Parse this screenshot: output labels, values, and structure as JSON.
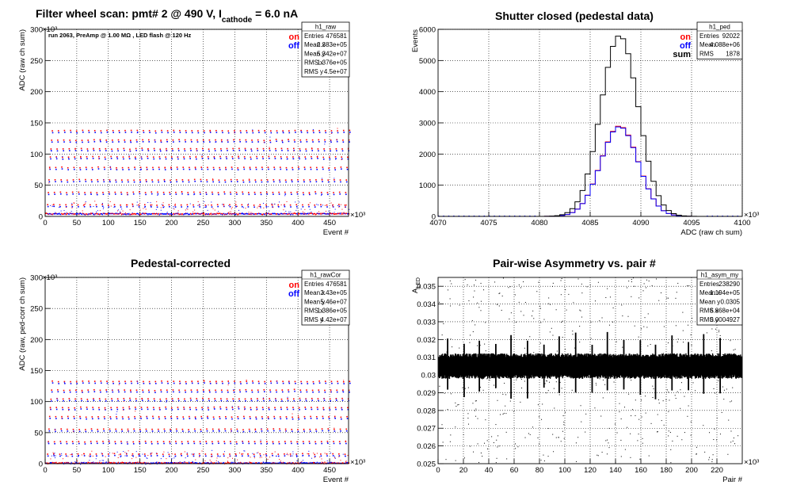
{
  "colors": {
    "on": "#ff0000",
    "off": "#0000ff",
    "sum": "#000000",
    "frame": "#000000",
    "grid": "#000000"
  },
  "chart_data": [
    {
      "type": "scatter",
      "title": "Filter wheel scan: pmt#   2 @   490 V, I",
      "title_sub": "cathode",
      "title_suffix": " = 6.0 nA",
      "xlabel": "Event #",
      "ylabel": "ADC (raw ch sum)",
      "x_exponent": "×10³",
      "y_exponent": "×10³",
      "annotation": "run 2063, PreAmp @ 1.00 MΩ , LED flash @  120 Hz",
      "legend": [
        "on",
        "off"
      ],
      "xlim": [
        0,
        480
      ],
      "ylim": [
        0,
        300
      ],
      "xticks": [
        0,
        50,
        100,
        150,
        200,
        250,
        300,
        350,
        400,
        450
      ],
      "yticks": [
        0,
        50,
        100,
        150,
        200,
        250,
        300
      ],
      "grid": true,
      "levels": [
        5,
        18,
        38,
        58,
        78,
        95,
        108,
        122,
        137
      ],
      "stats": {
        "name": "h1_raw",
        "rows": [
          [
            "Entries",
            "476581"
          ],
          [
            "Mean x",
            "2.383e+05"
          ],
          [
            "Mean y",
            "5.342e+07"
          ],
          [
            "RMS x",
            "1.376e+05"
          ],
          [
            "RMS y",
            "4.5e+07"
          ]
        ]
      }
    },
    {
      "type": "line",
      "title": "Shutter closed (pedestal data)",
      "xlabel": "ADC (raw ch sum)",
      "ylabel": "Events",
      "x_exponent": "×10³",
      "legend": [
        "on",
        "off",
        "sum"
      ],
      "xlim": [
        4070,
        4100
      ],
      "ylim": [
        0,
        6000
      ],
      "xticks": [
        4070,
        4075,
        4080,
        4085,
        4090,
        4095,
        4100
      ],
      "yticks": [
        0,
        1000,
        2000,
        3000,
        4000,
        5000,
        6000
      ],
      "grid": true,
      "series": [
        {
          "name": "on",
          "mean": 4087.9,
          "sigma": 1.85,
          "peak": 2900
        },
        {
          "name": "off",
          "mean": 4087.9,
          "sigma": 1.85,
          "peak": 2880
        },
        {
          "name": "sum",
          "mean": 4087.9,
          "sigma": 1.85,
          "peak": 5800
        }
      ],
      "stats": {
        "name": "h1_ped",
        "rows": [
          [
            "Entries",
            "92022"
          ],
          [
            "Mean",
            "4.088e+06"
          ],
          [
            "RMS",
            "1878"
          ]
        ]
      }
    },
    {
      "type": "scatter",
      "title": "Pedestal-corrected",
      "xlabel": "Event #",
      "ylabel": "ADC (raw, ped-corr ch sum)",
      "x_exponent": "×10³",
      "y_exponent": "×10³",
      "legend": [
        "on",
        "off"
      ],
      "xlim": [
        0,
        480
      ],
      "ylim": [
        0,
        300
      ],
      "xticks": [
        0,
        50,
        100,
        150,
        200,
        250,
        300,
        350,
        400,
        450
      ],
      "yticks": [
        0,
        50,
        100,
        150,
        200,
        250,
        300
      ],
      "grid": true,
      "levels": [
        2,
        15,
        35,
        55,
        75,
        90,
        104,
        118,
        132
      ],
      "stats": {
        "name": "h1_rawCor",
        "rows": [
          [
            "Entries",
            "476581"
          ],
          [
            "Mean x",
            "2.43e+05"
          ],
          [
            "Mean y",
            "5.46e+07"
          ],
          [
            "RMS x",
            "1.386e+05"
          ],
          [
            "RMS y",
            "4.42e+07"
          ]
        ]
      }
    },
    {
      "type": "scatter",
      "title": "Pair-wise Asymmetry vs. pair #",
      "xlabel": "Pair #",
      "ylabel": "A",
      "ylabel_sub": "LED",
      "x_exponent": "×10³",
      "xlim": [
        0,
        240
      ],
      "ylim": [
        0.025,
        0.0355
      ],
      "xticks": [
        0,
        20,
        40,
        60,
        80,
        100,
        120,
        140,
        160,
        180,
        200,
        220
      ],
      "yticks": [
        0.025,
        0.026,
        0.027,
        0.028,
        0.029,
        0.03,
        0.031,
        0.032,
        0.033,
        0.034,
        0.035
      ],
      "grid": true,
      "band_center": 0.0305,
      "band_halfwidth": 0.0006,
      "spike_x": [
        7,
        20,
        32,
        45,
        57,
        70,
        83,
        95,
        108,
        121,
        133,
        146,
        159,
        171,
        184,
        197,
        209,
        222
      ],
      "stats": {
        "name": "h1_asym_my",
        "rows": [
          [
            "Entries",
            "238290"
          ],
          [
            "Mean x",
            "1.194e+05"
          ],
          [
            "Mean y",
            "0.0305"
          ],
          [
            "RMS x",
            "6.868e+04"
          ],
          [
            "RMS y",
            "0.0004927"
          ]
        ]
      }
    }
  ]
}
